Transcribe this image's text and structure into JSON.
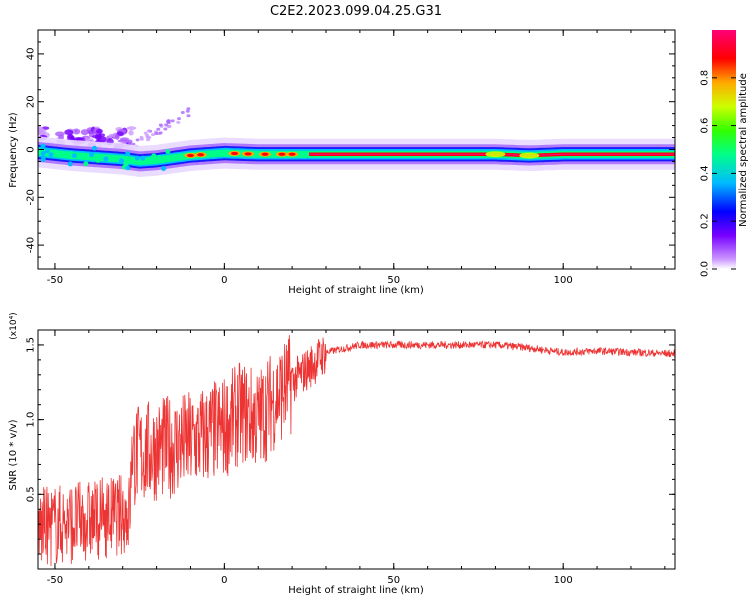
{
  "title": "C2E2.2023.099.04.25.G31",
  "chart_data": [
    {
      "type": "heatmap",
      "xlabel": "Height of straight line (km)",
      "ylabel": "Frequency (Hz)",
      "xlim": [
        -55,
        133
      ],
      "ylim": [
        -50,
        50
      ],
      "x_ticks": [
        -50,
        0,
        50,
        100
      ],
      "y_ticks": [
        -40,
        -20,
        0,
        20,
        40
      ],
      "colorbar": {
        "label": "Normalized spectral amplitude",
        "range": [
          0,
          1
        ],
        "ticks": [
          "0.0",
          "0.2",
          "0.4",
          "0.6",
          "0.8"
        ],
        "colors": [
          "#cc99ff",
          "#7700ff",
          "#0000ff",
          "#00bbff",
          "#00ff88",
          "#33ff00",
          "#ccff00",
          "#ffaa00",
          "#ff0000",
          "#ff0077"
        ]
      },
      "ridge": {
        "x": [
          -55,
          -45,
          -35,
          -30,
          -25,
          -20,
          -15,
          -10,
          -5,
          0,
          10,
          20,
          30,
          40,
          60,
          80,
          90,
          100,
          120,
          133
        ],
        "y": [
          -1,
          -2.5,
          -3.5,
          -4,
          -5,
          -4.5,
          -3.5,
          -2.5,
          -2,
          -1.5,
          -2,
          -2,
          -2,
          -2,
          -2,
          -2,
          -2.5,
          -2,
          -2,
          -2
        ]
      }
    },
    {
      "type": "line",
      "xlabel": "Height of straight line (km)",
      "ylabel": "SNR (10 * v/v)",
      "y_multiplier": "(x10⁴)",
      "xlim": [
        -55,
        133
      ],
      "ylim": [
        0,
        1.6
      ],
      "x_ticks": [
        -50,
        0,
        50,
        100
      ],
      "y_ticks": [
        "0.5",
        "1.0",
        "1.5"
      ],
      "line_color": "#ee3333",
      "envelope": {
        "x": [
          -55,
          -40,
          -28,
          -27,
          -20,
          -10,
          0,
          5,
          10,
          15,
          20,
          25,
          30,
          40,
          60,
          80,
          90,
          100,
          110,
          133
        ],
        "y": [
          0.2,
          0.25,
          0.3,
          0.75,
          0.8,
          0.85,
          0.95,
          1.05,
          1.0,
          1.15,
          1.25,
          1.35,
          1.45,
          1.5,
          1.5,
          1.5,
          1.48,
          1.45,
          1.46,
          1.44
        ]
      }
    }
  ]
}
